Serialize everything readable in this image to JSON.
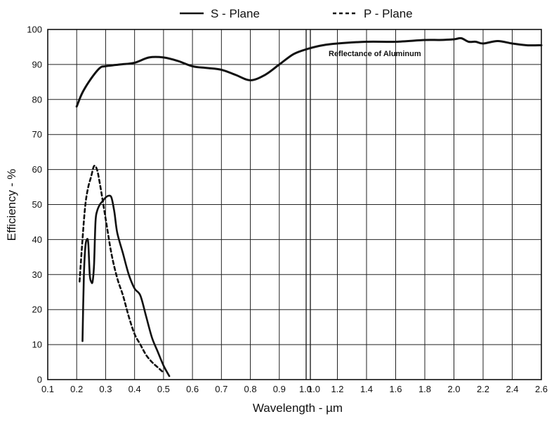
{
  "chart_data": {
    "type": "line",
    "xlabel": "Wavelength - µm",
    "ylabel": "Efficiency - %",
    "ylim": [
      0,
      100
    ],
    "y_ticks": [
      "0",
      "10",
      "20",
      "30",
      "40",
      "50",
      "60",
      "70",
      "80",
      "90",
      "100"
    ],
    "x_ticks_left": [
      "0.1",
      "0.2",
      "0.3",
      "0.4",
      "0.5",
      "0.6",
      "0.7",
      "0.8",
      "0.9",
      "1.0"
    ],
    "x_ticks_right": [
      "1.0",
      "1.2",
      "1.4",
      "1.6",
      "1.8",
      "2.0",
      "2.2",
      "2.4",
      "2.6"
    ],
    "x_scale": "broken: 0.1-1.0 linear (step 0.1) then 1.0-2.6 linear (step 0.2), separated by a double line at 1.0",
    "grid": true,
    "legend_position": "top",
    "annotation": "Reflectance of Aluminum",
    "series": [
      {
        "name": "S - Plane",
        "style": "solid",
        "color": "#111111",
        "points": [
          [
            0.22,
            11
          ],
          [
            0.225,
            30
          ],
          [
            0.23,
            38
          ],
          [
            0.235,
            40
          ],
          [
            0.24,
            39
          ],
          [
            0.245,
            30
          ],
          [
            0.25,
            28
          ],
          [
            0.255,
            28
          ],
          [
            0.26,
            33
          ],
          [
            0.265,
            45
          ],
          [
            0.27,
            48
          ],
          [
            0.28,
            50
          ],
          [
            0.29,
            51
          ],
          [
            0.3,
            52
          ],
          [
            0.31,
            52.5
          ],
          [
            0.32,
            52
          ],
          [
            0.33,
            48
          ],
          [
            0.34,
            42
          ],
          [
            0.36,
            36
          ],
          [
            0.38,
            30
          ],
          [
            0.4,
            26
          ],
          [
            0.42,
            24
          ],
          [
            0.44,
            18
          ],
          [
            0.46,
            12
          ],
          [
            0.48,
            8
          ],
          [
            0.5,
            4
          ],
          [
            0.52,
            1
          ]
        ]
      },
      {
        "name": "P - Plane",
        "style": "dashed",
        "color": "#111111",
        "points": [
          [
            0.21,
            28
          ],
          [
            0.22,
            40
          ],
          [
            0.23,
            50
          ],
          [
            0.24,
            55
          ],
          [
            0.25,
            58
          ],
          [
            0.26,
            61
          ],
          [
            0.27,
            60
          ],
          [
            0.28,
            56
          ],
          [
            0.3,
            46
          ],
          [
            0.32,
            36
          ],
          [
            0.34,
            29
          ],
          [
            0.36,
            24
          ],
          [
            0.38,
            18
          ],
          [
            0.4,
            13
          ],
          [
            0.42,
            10
          ],
          [
            0.44,
            7
          ],
          [
            0.46,
            5
          ],
          [
            0.48,
            3.5
          ],
          [
            0.5,
            2
          ]
        ]
      },
      {
        "name": "",
        "label": "Reflectance of Aluminum",
        "style": "solid-thick",
        "color": "#111111",
        "points": [
          [
            0.2,
            78
          ],
          [
            0.22,
            82
          ],
          [
            0.25,
            86
          ],
          [
            0.28,
            89
          ],
          [
            0.3,
            89.5
          ],
          [
            0.35,
            90
          ],
          [
            0.4,
            90.5
          ],
          [
            0.45,
            92
          ],
          [
            0.5,
            92
          ],
          [
            0.55,
            91
          ],
          [
            0.6,
            89.5
          ],
          [
            0.65,
            89
          ],
          [
            0.7,
            88.5
          ],
          [
            0.75,
            87
          ],
          [
            0.8,
            85.5
          ],
          [
            0.85,
            87
          ],
          [
            0.9,
            90
          ],
          [
            0.95,
            93
          ],
          [
            1.0,
            94.5
          ],
          [
            1.1,
            95.5
          ],
          [
            1.2,
            96
          ],
          [
            1.4,
            96.5
          ],
          [
            1.6,
            96.5
          ],
          [
            1.8,
            97
          ],
          [
            1.9,
            97
          ],
          [
            2.0,
            97.2
          ],
          [
            2.05,
            97.5
          ],
          [
            2.1,
            96.5
          ],
          [
            2.15,
            96.5
          ],
          [
            2.2,
            96
          ],
          [
            2.3,
            96.7
          ],
          [
            2.4,
            96
          ],
          [
            2.5,
            95.5
          ],
          [
            2.6,
            95.5
          ]
        ]
      }
    ]
  }
}
